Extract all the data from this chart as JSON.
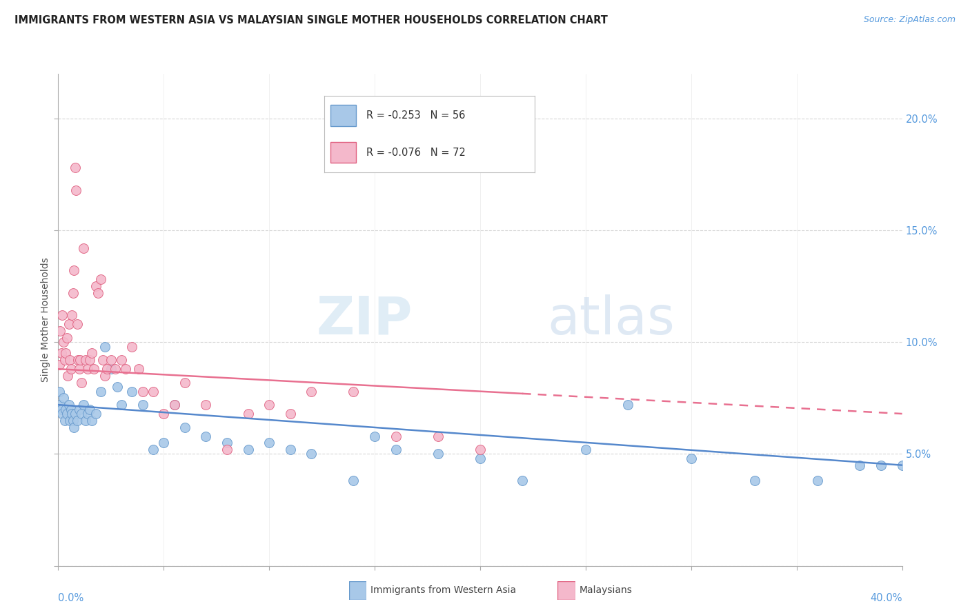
{
  "title": "IMMIGRANTS FROM WESTERN ASIA VS MALAYSIAN SINGLE MOTHER HOUSEHOLDS CORRELATION CHART",
  "source": "Source: ZipAtlas.com",
  "ylabel": "Single Mother Households",
  "legend1_label": "R = -0.253   N = 56",
  "legend2_label": "R = -0.076   N = 72",
  "blue_color": "#a8c8e8",
  "pink_color": "#f4b8cb",
  "blue_edge_color": "#6699cc",
  "pink_edge_color": "#e06080",
  "blue_line_color": "#5588cc",
  "pink_line_color": "#e87090",
  "blue_scatter_x": [
    0.05,
    0.1,
    0.15,
    0.2,
    0.25,
    0.3,
    0.35,
    0.4,
    0.5,
    0.55,
    0.6,
    0.65,
    0.7,
    0.75,
    0.8,
    0.9,
    1.0,
    1.1,
    1.2,
    1.3,
    1.4,
    1.5,
    1.6,
    1.8,
    2.0,
    2.2,
    2.5,
    2.8,
    3.0,
    3.5,
    4.0,
    4.5,
    5.0,
    5.5,
    6.0,
    7.0,
    8.0,
    9.0,
    10.0,
    11.0,
    12.0,
    14.0,
    15.0,
    16.0,
    18.0,
    20.0,
    22.0,
    25.0,
    27.0,
    30.0,
    33.0,
    36.0,
    38.0,
    39.0,
    40.0
  ],
  "blue_scatter_y": [
    7.8,
    7.2,
    7.0,
    6.8,
    7.5,
    6.5,
    7.0,
    6.8,
    7.2,
    6.5,
    7.0,
    6.8,
    6.5,
    6.2,
    6.8,
    6.5,
    7.0,
    6.8,
    7.2,
    6.5,
    6.8,
    7.0,
    6.5,
    6.8,
    7.8,
    9.8,
    8.8,
    8.0,
    7.2,
    7.8,
    7.2,
    5.2,
    5.5,
    7.2,
    6.2,
    5.8,
    5.5,
    5.2,
    5.5,
    5.2,
    5.0,
    3.8,
    5.8,
    5.2,
    5.0,
    4.8,
    3.8,
    5.2,
    7.2,
    4.8,
    3.8,
    3.8,
    4.5,
    4.5,
    4.5
  ],
  "pink_scatter_x": [
    0.05,
    0.1,
    0.15,
    0.2,
    0.25,
    0.3,
    0.35,
    0.4,
    0.45,
    0.5,
    0.55,
    0.6,
    0.65,
    0.7,
    0.75,
    0.8,
    0.85,
    0.9,
    0.95,
    1.0,
    1.05,
    1.1,
    1.2,
    1.3,
    1.4,
    1.5,
    1.6,
    1.7,
    1.8,
    1.9,
    2.0,
    2.1,
    2.2,
    2.3,
    2.5,
    2.7,
    3.0,
    3.2,
    3.5,
    3.8,
    4.0,
    4.5,
    5.0,
    5.5,
    6.0,
    7.0,
    8.0,
    9.0,
    10.0,
    11.0,
    12.0,
    14.0,
    16.0,
    18.0,
    20.0
  ],
  "pink_scatter_y": [
    9.0,
    10.5,
    9.5,
    11.2,
    10.0,
    9.2,
    9.5,
    10.2,
    8.5,
    10.8,
    9.2,
    8.8,
    11.2,
    12.2,
    13.2,
    17.8,
    16.8,
    10.8,
    9.2,
    8.8,
    9.2,
    8.2,
    14.2,
    9.2,
    8.8,
    9.2,
    9.5,
    8.8,
    12.5,
    12.2,
    12.8,
    9.2,
    8.5,
    8.8,
    9.2,
    8.8,
    9.2,
    8.8,
    9.8,
    8.8,
    7.8,
    7.8,
    6.8,
    7.2,
    8.2,
    7.2,
    5.2,
    6.8,
    7.2,
    6.8,
    7.8,
    7.8,
    5.8,
    5.8,
    5.2
  ],
  "blue_trend_x0": 0.0,
  "blue_trend_x1": 40.0,
  "blue_trend_y0": 7.2,
  "blue_trend_y1": 4.5,
  "pink_trend_x0": 0.0,
  "pink_trend_x1": 40.0,
  "pink_trend_y0": 8.8,
  "pink_trend_y1": 6.8,
  "xlim": [
    0,
    40
  ],
  "ylim": [
    0,
    22
  ],
  "xticks": [
    0,
    5,
    10,
    15,
    20,
    25,
    30,
    35,
    40
  ],
  "yticks": [
    0,
    5,
    10,
    15,
    20
  ],
  "ytick_labels": [
    "",
    "5.0%",
    "10.0%",
    "15.0%",
    "20.0%"
  ]
}
